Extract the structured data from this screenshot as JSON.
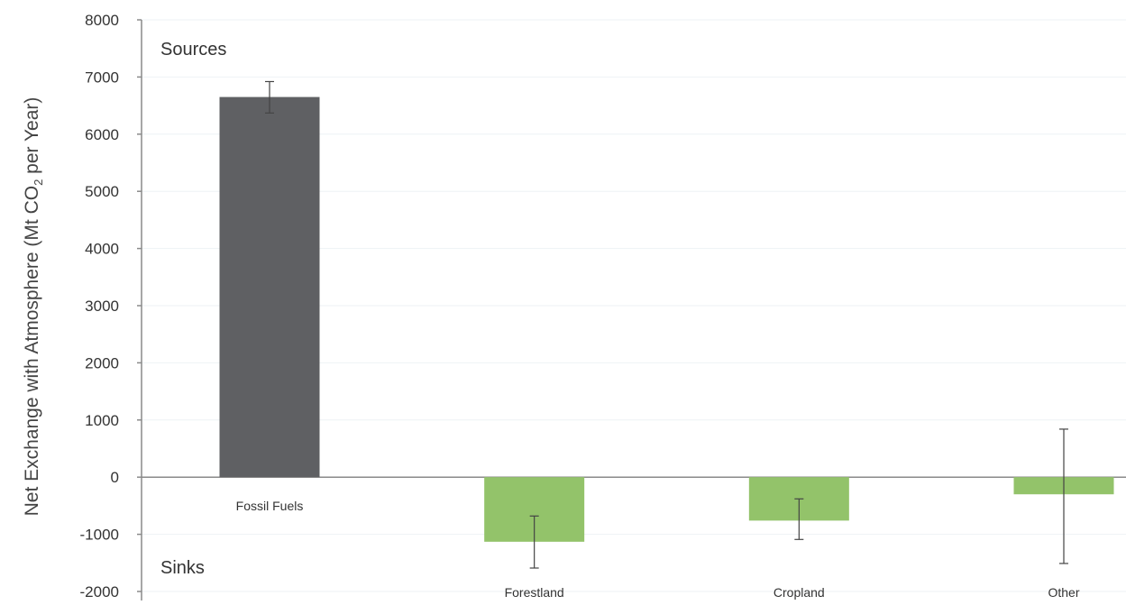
{
  "chart_data": {
    "type": "bar",
    "title": "",
    "xlabel": "",
    "ylabel": {
      "prefix": "Net Exchange with Atmosphere (Mt CO",
      "subscript": "2",
      "suffix": " per Year)"
    },
    "ylim": [
      -2000,
      8000
    ],
    "yticks": [
      8000,
      7000,
      6000,
      5000,
      4000,
      3000,
      2000,
      1000,
      0,
      -1000,
      -2000
    ],
    "grid": true,
    "categories": [
      "Fossil Fuels",
      "Forestland",
      "Cropland",
      "Other"
    ],
    "values": [
      6650,
      -1130,
      -760,
      -300
    ],
    "error_low": [
      6370,
      -1590,
      -1090,
      -1510
    ],
    "error_high": [
      6920,
      -680,
      -380,
      840
    ],
    "annotations": [
      "Sources",
      "Sinks"
    ],
    "colors": {
      "source": "#5f6063",
      "sink": "#93c36a",
      "axis": "#8a8a8a",
      "grid": "#eef2f5",
      "text": "#333333"
    }
  }
}
